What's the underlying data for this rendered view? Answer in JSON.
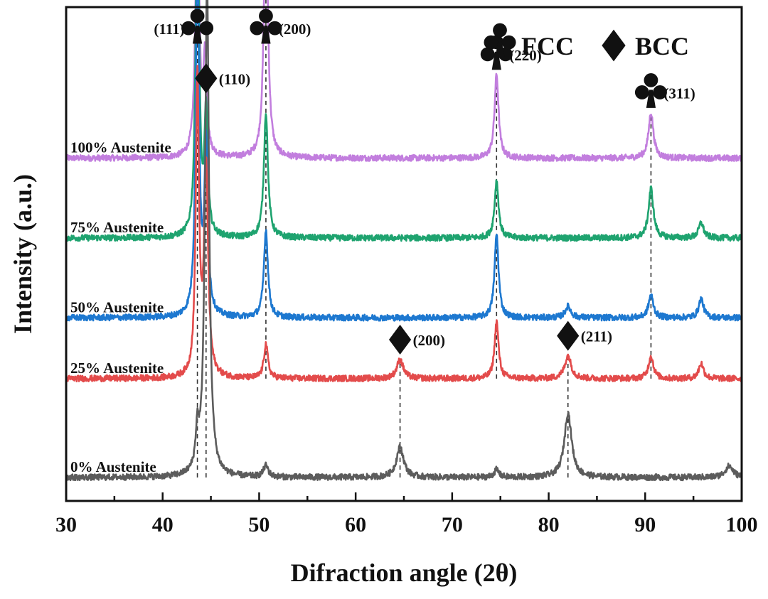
{
  "chart_data": {
    "type": "line",
    "xlabel": "Difraction angle (2θ)",
    "ylabel": "Intensity (a.u.)",
    "xlim": [
      30,
      100
    ],
    "xticks": [
      30,
      40,
      50,
      60,
      70,
      80,
      90,
      100
    ],
    "yticks_shown": false,
    "grid": false,
    "legend": {
      "placement": "top-right",
      "entries": [
        {
          "symbol": "club",
          "text": "FCC"
        },
        {
          "symbol": "diamond",
          "text": "BCC"
        }
      ]
    },
    "series": [
      {
        "name": "100% Austenite",
        "color": "#c27ede",
        "baseline": 84,
        "noise": 0.8,
        "peaks": [
          {
            "x": 43.6,
            "height": 73,
            "width": 0.22
          },
          {
            "x": 44.4,
            "height": 26,
            "width": 0.2
          },
          {
            "x": 50.7,
            "height": 68,
            "width": 0.25
          },
          {
            "x": 74.6,
            "height": 22,
            "width": 0.25
          },
          {
            "x": 90.6,
            "height": 12,
            "width": 0.3
          }
        ]
      },
      {
        "name": "75% Austenite",
        "color": "#1ea36f",
        "baseline": 63,
        "noise": 0.8,
        "peaks": [
          {
            "x": 43.6,
            "height": 100,
            "width": 0.2
          },
          {
            "x": 44.5,
            "height": 32,
            "width": 0.2
          },
          {
            "x": 50.7,
            "height": 33,
            "width": 0.25
          },
          {
            "x": 74.6,
            "height": 15,
            "width": 0.25
          },
          {
            "x": 90.6,
            "height": 13,
            "width": 0.3
          },
          {
            "x": 95.8,
            "height": 4,
            "width": 0.3
          }
        ]
      },
      {
        "name": "50% Austenite",
        "color": "#1d78d0",
        "baseline": 42,
        "noise": 0.8,
        "peaks": [
          {
            "x": 43.6,
            "height": 100,
            "width": 0.2
          },
          {
            "x": 44.5,
            "height": 44,
            "width": 0.22
          },
          {
            "x": 50.7,
            "height": 23,
            "width": 0.25
          },
          {
            "x": 74.6,
            "height": 22,
            "width": 0.25
          },
          {
            "x": 82,
            "height": 3,
            "width": 0.35
          },
          {
            "x": 90.6,
            "height": 6,
            "width": 0.3
          },
          {
            "x": 95.8,
            "height": 5,
            "width": 0.3
          }
        ]
      },
      {
        "name": "25% Austenite",
        "color": "#e34b4b",
        "baseline": 26,
        "noise": 0.8,
        "peaks": [
          {
            "x": 43.6,
            "height": 78,
            "width": 0.2
          },
          {
            "x": 44.5,
            "height": 55,
            "width": 0.25
          },
          {
            "x": 50.7,
            "height": 9,
            "width": 0.25
          },
          {
            "x": 64.6,
            "height": 5,
            "width": 0.4
          },
          {
            "x": 74.6,
            "height": 15,
            "width": 0.25
          },
          {
            "x": 82,
            "height": 6,
            "width": 0.4
          },
          {
            "x": 90.6,
            "height": 6,
            "width": 0.3
          },
          {
            "x": 95.8,
            "height": 4,
            "width": 0.3
          }
        ]
      },
      {
        "name": "0% Austenite",
        "color": "#5c5c5c",
        "baseline": 0,
        "noise": 0.8,
        "peaks": [
          {
            "x": 43.6,
            "height": 10,
            "width": 0.2
          },
          {
            "x": 44.6,
            "height": 130,
            "width": 0.25
          },
          {
            "x": 50.7,
            "height": 3,
            "width": 0.3
          },
          {
            "x": 64.6,
            "height": 8,
            "width": 0.45
          },
          {
            "x": 74.6,
            "height": 2,
            "width": 0.3
          },
          {
            "x": 82,
            "height": 17,
            "width": 0.45
          },
          {
            "x": 98.7,
            "height": 3,
            "width": 0.5
          }
        ]
      }
    ],
    "reference_lines": [
      {
        "x": 43.6,
        "from": "0% Austenite",
        "to": "100% Austenite"
      },
      {
        "x": 44.5,
        "from": "0% Austenite",
        "to": "75% Austenite"
      },
      {
        "x": 50.7,
        "from": "25% Austenite",
        "to": "100% Austenite"
      },
      {
        "x": 64.6,
        "from": "0% Austenite",
        "to": "25% Austenite"
      },
      {
        "x": 74.6,
        "from": "25% Austenite",
        "to": "100% Austenite"
      },
      {
        "x": 82,
        "from": "0% Austenite",
        "to": "25% Austenite"
      },
      {
        "x": 90.6,
        "from": "25% Austenite",
        "to": "100% Austenite"
      }
    ],
    "annotations": [
      {
        "phase": "FCC",
        "symbol": "club",
        "text": "(111)",
        "x": 43.6,
        "label_side": "left"
      },
      {
        "phase": "FCC",
        "symbol": "club",
        "text": "(200)",
        "x": 50.7,
        "label_side": "right"
      },
      {
        "phase": "FCC",
        "symbol": "club",
        "text": "(220)",
        "x": 74.6,
        "label_side": "right"
      },
      {
        "phase": "FCC",
        "symbol": "club",
        "text": "(311)",
        "x": 90.6,
        "label_side": "right"
      },
      {
        "phase": "BCC",
        "symbol": "diamond",
        "text": "(110)",
        "x": 44.5,
        "label_side": "right"
      },
      {
        "phase": "BCC",
        "symbol": "diamond",
        "text": "(200)",
        "x": 64.6,
        "label_side": "right"
      },
      {
        "phase": "BCC",
        "symbol": "diamond",
        "text": "(211)",
        "x": 82,
        "label_side": "right"
      }
    ]
  }
}
